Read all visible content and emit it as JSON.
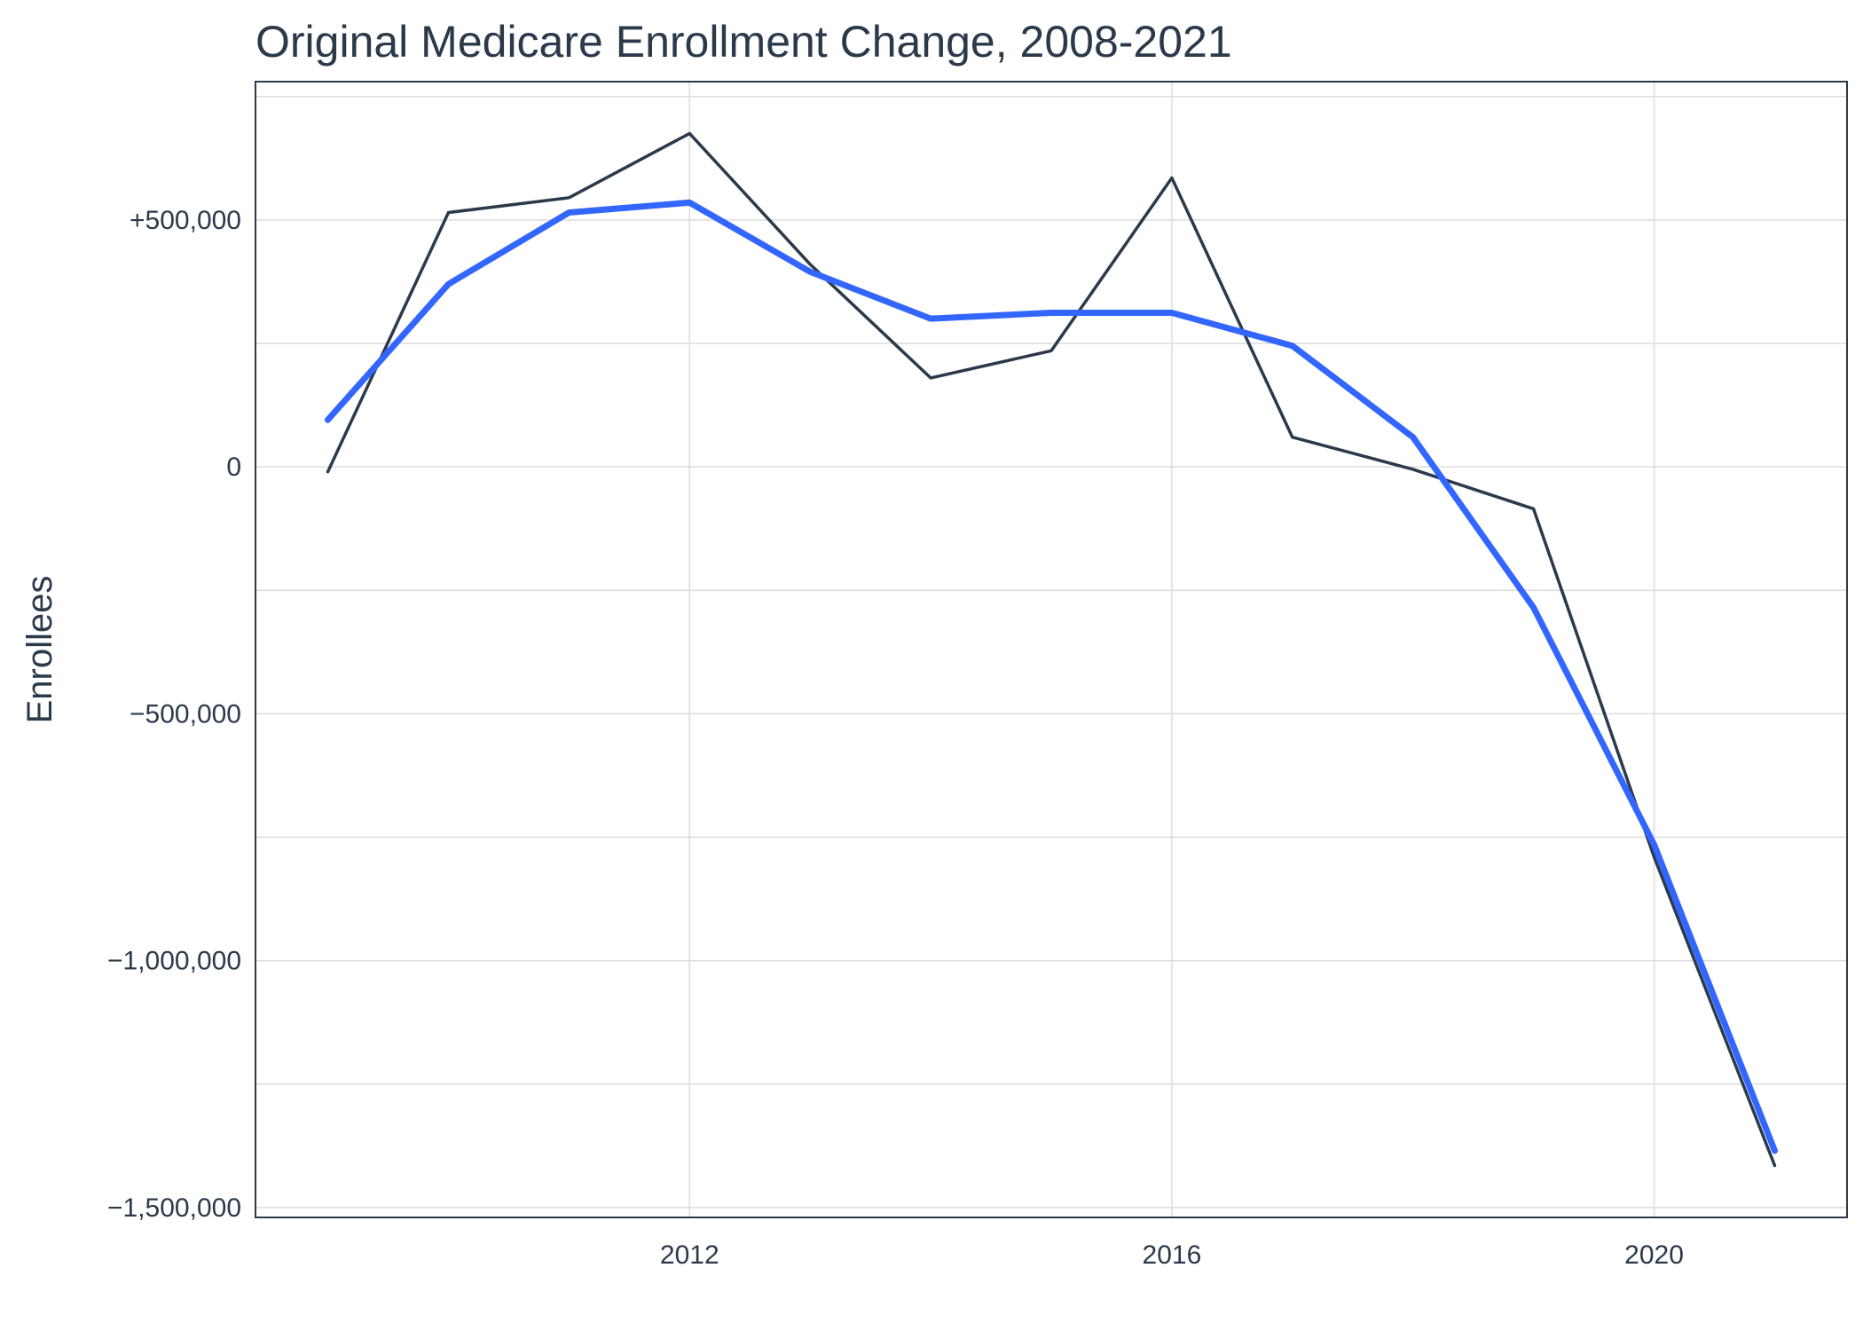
{
  "chart_data": {
    "type": "line",
    "title": "Original Medicare Enrollment Change, 2008-2021",
    "xlabel": "",
    "ylabel": "Enrollees",
    "xlim": [
      2008.4,
      2021.6
    ],
    "ylim": [
      -1520000,
      780000
    ],
    "x_ticks": [
      2012,
      2016,
      2020
    ],
    "y_ticks": [
      500000,
      0,
      -500000,
      -1000000,
      -1500000
    ],
    "y_tick_labels": [
      "+500,000",
      "0",
      "−500,000",
      "−1,000,000",
      "−1,500,000"
    ],
    "grid": true,
    "legend": "none",
    "x": [
      2009,
      2010,
      2011,
      2012,
      2013,
      2014,
      2015,
      2016,
      2017,
      2018,
      2019,
      2020,
      2021
    ],
    "series": [
      {
        "color": "#2b3a4a",
        "values": [
          -10000,
          515000,
          545000,
          675000,
          410000,
          180000,
          235000,
          585000,
          60000,
          -5000,
          -85000,
          -790000,
          -1415000
        ]
      },
      {
        "color": "#3366ff",
        "values": [
          95000,
          370000,
          515000,
          535000,
          395000,
          300000,
          312000,
          312000,
          245000,
          60000,
          -285000,
          -765000,
          -1385000
        ]
      }
    ]
  }
}
